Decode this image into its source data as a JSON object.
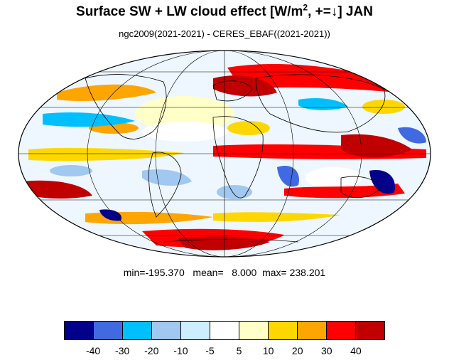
{
  "title": {
    "prefix": "Surface SW + LW cloud effect [W/m",
    "sup": "2",
    "suffix": ", +=↓]  JAN"
  },
  "subtitle": "ngc2009(2021-2021) - CERES_EBAF((2021-2021))",
  "stats": {
    "text": "min=-195.370   mean=   8.000  max= 238.201",
    "min": -195.37,
    "mean": 8.0,
    "max": 238.201
  },
  "map": {
    "projection": "mollweide",
    "graticule": true,
    "coastlines": true
  },
  "colorbar": {
    "colors": [
      "#00008b",
      "#4169e1",
      "#00bfff",
      "#a0c8f0",
      "#cdeeff",
      "#ffffff",
      "#ffffc8",
      "#ffd700",
      "#ffa500",
      "#ff0000",
      "#c00000"
    ],
    "ticks": [
      "-40",
      "-30",
      "-20",
      "-10",
      "-5",
      "5",
      "10",
      "20",
      "30",
      "40"
    ]
  }
}
